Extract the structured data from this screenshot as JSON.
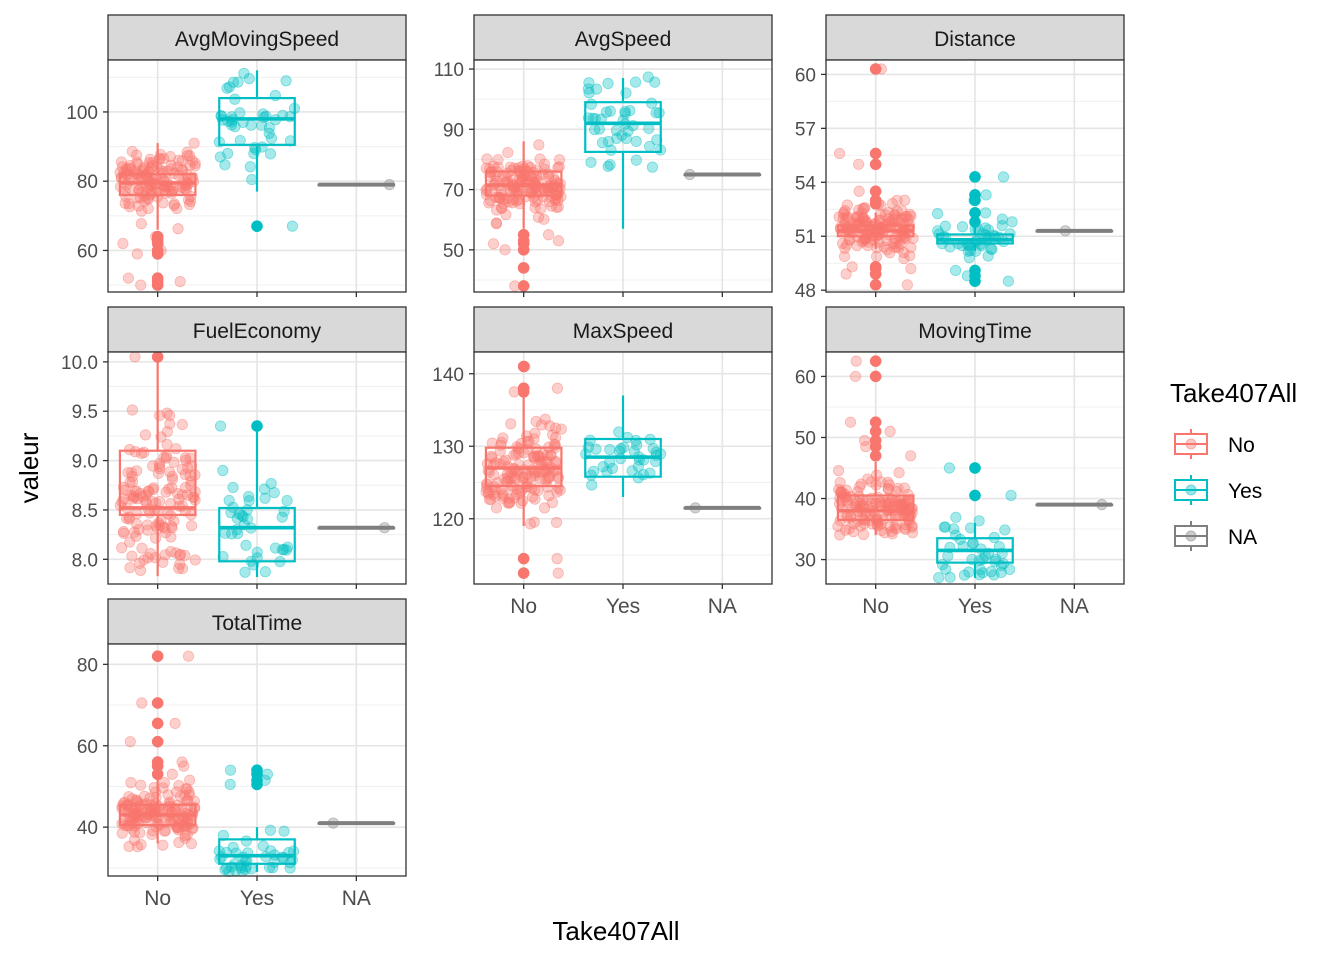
{
  "chart_data": {
    "type": "boxplot",
    "xlabel": "Take407All",
    "ylabel": "valeur",
    "categories": [
      "No",
      "Yes",
      "NA"
    ],
    "legend": {
      "title": "Take407All",
      "position": "right",
      "entries": [
        {
          "label": "No",
          "color": "#F8766D"
        },
        {
          "label": "Yes",
          "color": "#00BFC4"
        },
        {
          "label": "NA",
          "color": "#7F7F7F"
        }
      ]
    },
    "grid": true,
    "panels": [
      {
        "title": "AvgMovingSpeed",
        "ylim": [
          48,
          115
        ],
        "yticks": [
          60,
          80,
          100
        ],
        "groups": [
          {
            "category": "No",
            "q1": 76,
            "median": 79.5,
            "q3": 82,
            "whisker_low": 66,
            "whisker_high": 91,
            "outliers": [
              64,
              63,
              62,
              60,
              59,
              52,
              51,
              50
            ],
            "jitter": {
              "n": 140,
              "min": 50,
              "max": 91,
              "center": 79.5,
              "spread": 5
            }
          },
          {
            "category": "Yes",
            "q1": 90.5,
            "median": 98,
            "q3": 104,
            "whisker_low": 77,
            "whisker_high": 112,
            "outliers": [
              67
            ],
            "jitter": {
              "n": 45,
              "min": 67,
              "max": 112,
              "center": 98,
              "spread": 8
            }
          },
          {
            "category": "NA",
            "q1": 79,
            "median": 79,
            "q3": 79,
            "whisker_low": 79,
            "whisker_high": 79,
            "outliers": [],
            "jitter": {
              "n": 1,
              "min": 79,
              "max": 79,
              "center": 79,
              "spread": 0
            }
          }
        ]
      },
      {
        "title": "AvgSpeed",
        "ylim": [
          36,
          113
        ],
        "yticks": [
          50,
          70,
          90,
          110
        ],
        "groups": [
          {
            "category": "No",
            "q1": 68,
            "median": 71.5,
            "q3": 76,
            "whisker_low": 57,
            "whisker_high": 86,
            "outliers": [
              55,
              53,
              52,
              50,
              44,
              38
            ],
            "jitter": {
              "n": 150,
              "min": 38,
              "max": 87,
              "center": 71.5,
              "spread": 5
            }
          },
          {
            "category": "Yes",
            "q1": 82.5,
            "median": 92,
            "q3": 99,
            "whisker_low": 57,
            "whisker_high": 107,
            "outliers": [],
            "jitter": {
              "n": 45,
              "min": 57,
              "max": 108,
              "center": 92,
              "spread": 9
            }
          },
          {
            "category": "NA",
            "q1": 75,
            "median": 75,
            "q3": 75,
            "whisker_low": 75,
            "whisker_high": 75,
            "outliers": [],
            "jitter": {
              "n": 1,
              "min": 75,
              "max": 75,
              "center": 75,
              "spread": 0
            }
          }
        ]
      },
      {
        "title": "Distance",
        "ylim": [
          47.9,
          60.8
        ],
        "yticks": [
          48,
          51,
          54,
          57,
          60
        ],
        "groups": [
          {
            "category": "No",
            "q1": 51,
            "median": 51.3,
            "q3": 51.6,
            "whisker_low": 50.3,
            "whisker_high": 52.3,
            "outliers": [
              60.3,
              55.6,
              55,
              53.5,
              53,
              52.8,
              49.3,
              49.2,
              48.9,
              48.3
            ],
            "jitter": {
              "n": 150,
              "min": 48.3,
              "max": 60.3,
              "center": 51.3,
              "spread": 0.7
            }
          },
          {
            "category": "Yes",
            "q1": 50.6,
            "median": 50.8,
            "q3": 51.1,
            "whisker_low": 50.2,
            "whisker_high": 51.6,
            "outliers": [
              54.3,
              53.3,
              53.0,
              52.3,
              51.8,
              49.1,
              48.8,
              48.5
            ],
            "jitter": {
              "n": 40,
              "min": 48.4,
              "max": 54.3,
              "center": 50.8,
              "spread": 0.5
            }
          },
          {
            "category": "NA",
            "q1": 51.3,
            "median": 51.3,
            "q3": 51.3,
            "whisker_low": 51.3,
            "whisker_high": 51.3,
            "outliers": [],
            "jitter": {
              "n": 1,
              "min": 51.3,
              "max": 51.3,
              "center": 51.3,
              "spread": 0
            }
          }
        ]
      },
      {
        "title": "FuelEconomy",
        "ylim": [
          7.75,
          10.1
        ],
        "yticks": [
          8.0,
          8.5,
          9.0,
          9.5,
          10.0
        ],
        "groups": [
          {
            "category": "No",
            "q1": 8.45,
            "median": 8.52,
            "q3": 9.1,
            "whisker_low": 7.83,
            "whisker_high": 10.05,
            "outliers": [
              10.05
            ],
            "jitter": {
              "n": 140,
              "min": 7.85,
              "max": 10.05,
              "center": 8.6,
              "spread": 0.4
            }
          },
          {
            "category": "Yes",
            "q1": 7.98,
            "median": 8.32,
            "q3": 8.52,
            "whisker_low": 7.82,
            "whisker_high": 9.35,
            "outliers": [
              9.35
            ],
            "jitter": {
              "n": 40,
              "min": 7.82,
              "max": 9.35,
              "center": 8.3,
              "spread": 0.3
            }
          },
          {
            "category": "NA",
            "q1": 8.32,
            "median": 8.32,
            "q3": 8.32,
            "whisker_low": 8.32,
            "whisker_high": 8.32,
            "outliers": [],
            "jitter": {
              "n": 1,
              "min": 8.32,
              "max": 8.32,
              "center": 8.32,
              "spread": 0
            }
          }
        ]
      },
      {
        "title": "MaxSpeed",
        "ylim": [
          111,
          143
        ],
        "yticks": [
          120,
          130,
          140
        ],
        "groups": [
          {
            "category": "No",
            "q1": 124.5,
            "median": 127,
            "q3": 129.8,
            "whisker_low": 119,
            "whisker_high": 137,
            "outliers": [
              141,
              138,
              137.5,
              114.5,
              112.5
            ],
            "jitter": {
              "n": 150,
              "min": 112,
              "max": 141,
              "center": 127,
              "spread": 3
            }
          },
          {
            "category": "Yes",
            "q1": 125.8,
            "median": 128.5,
            "q3": 131,
            "whisker_low": 123,
            "whisker_high": 137,
            "outliers": [],
            "jitter": {
              "n": 35,
              "min": 123,
              "max": 137,
              "center": 128.5,
              "spread": 2.5
            }
          },
          {
            "category": "NA",
            "q1": 121.5,
            "median": 121.5,
            "q3": 121.5,
            "whisker_low": 121.5,
            "whisker_high": 121.5,
            "outliers": [],
            "jitter": {
              "n": 1,
              "min": 121.5,
              "max": 121.5,
              "center": 121.5,
              "spread": 0
            }
          }
        ]
      },
      {
        "title": "MovingTime",
        "ylim": [
          26,
          64
        ],
        "yticks": [
          30,
          40,
          50,
          60
        ],
        "groups": [
          {
            "category": "No",
            "q1": 36.5,
            "median": 38,
            "q3": 40.5,
            "whisker_low": 34,
            "whisker_high": 46,
            "outliers": [
              62.5,
              60,
              52.5,
              51,
              49.5,
              48.5,
              47
            ],
            "jitter": {
              "n": 150,
              "min": 34,
              "max": 62.5,
              "center": 38.5,
              "spread": 2.5
            }
          },
          {
            "category": "Yes",
            "q1": 29.5,
            "median": 31.5,
            "q3": 33.5,
            "whisker_low": 27,
            "whisker_high": 36,
            "outliers": [
              45,
              40.5
            ],
            "jitter": {
              "n": 40,
              "min": 27,
              "max": 45,
              "center": 31.5,
              "spread": 2.5
            }
          },
          {
            "category": "NA",
            "q1": 39,
            "median": 39,
            "q3": 39,
            "whisker_low": 39,
            "whisker_high": 39,
            "outliers": [],
            "jitter": {
              "n": 1,
              "min": 39,
              "max": 39,
              "center": 39,
              "spread": 0
            }
          }
        ]
      },
      {
        "title": "TotalTime",
        "ylim": [
          28,
          85
        ],
        "yticks": [
          40,
          60,
          80
        ],
        "groups": [
          {
            "category": "No",
            "q1": 40.5,
            "median": 43,
            "q3": 45.5,
            "whisker_low": 36,
            "whisker_high": 52,
            "outliers": [
              82,
              70.5,
              65.5,
              61,
              56,
              55,
              53
            ],
            "jitter": {
              "n": 150,
              "min": 35,
              "max": 82,
              "center": 43,
              "spread": 3.5
            }
          },
          {
            "category": "Yes",
            "q1": 31,
            "median": 33,
            "q3": 37,
            "whisker_low": 29,
            "whisker_high": 40,
            "outliers": [
              54,
              53,
              51.5,
              50.5
            ],
            "jitter": {
              "n": 40,
              "min": 29,
              "max": 54,
              "center": 33,
              "spread": 3
            }
          },
          {
            "category": "NA",
            "q1": 41,
            "median": 41,
            "q3": 41,
            "whisker_low": 41,
            "whisker_high": 41,
            "outliers": [],
            "jitter": {
              "n": 1,
              "min": 41,
              "max": 41,
              "center": 41,
              "spread": 0
            }
          }
        ]
      }
    ]
  }
}
